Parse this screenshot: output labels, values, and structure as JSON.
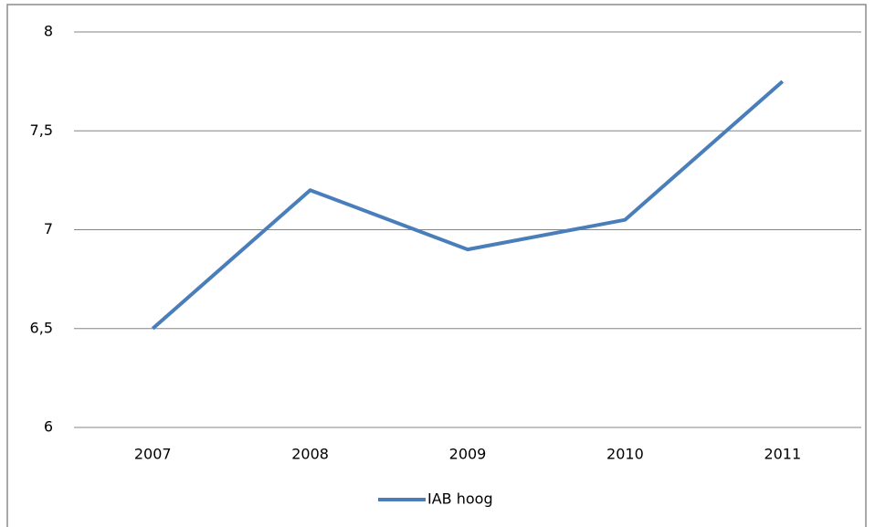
{
  "chart_data": {
    "type": "line",
    "categories": [
      "2007",
      "2008",
      "2009",
      "2010",
      "2011"
    ],
    "series": [
      {
        "name": "IAB hoog",
        "color": "#4a7ebb",
        "values": [
          6.5,
          7.2,
          6.9,
          7.05,
          7.75
        ]
      }
    ],
    "ylim": [
      6,
      8
    ],
    "yticks": [
      6,
      {
        "value": 6.5,
        "label": "6,5"
      },
      7,
      {
        "value": 7.5,
        "label": "7,5"
      },
      8
    ],
    "grid": true,
    "legend": "bottom"
  }
}
